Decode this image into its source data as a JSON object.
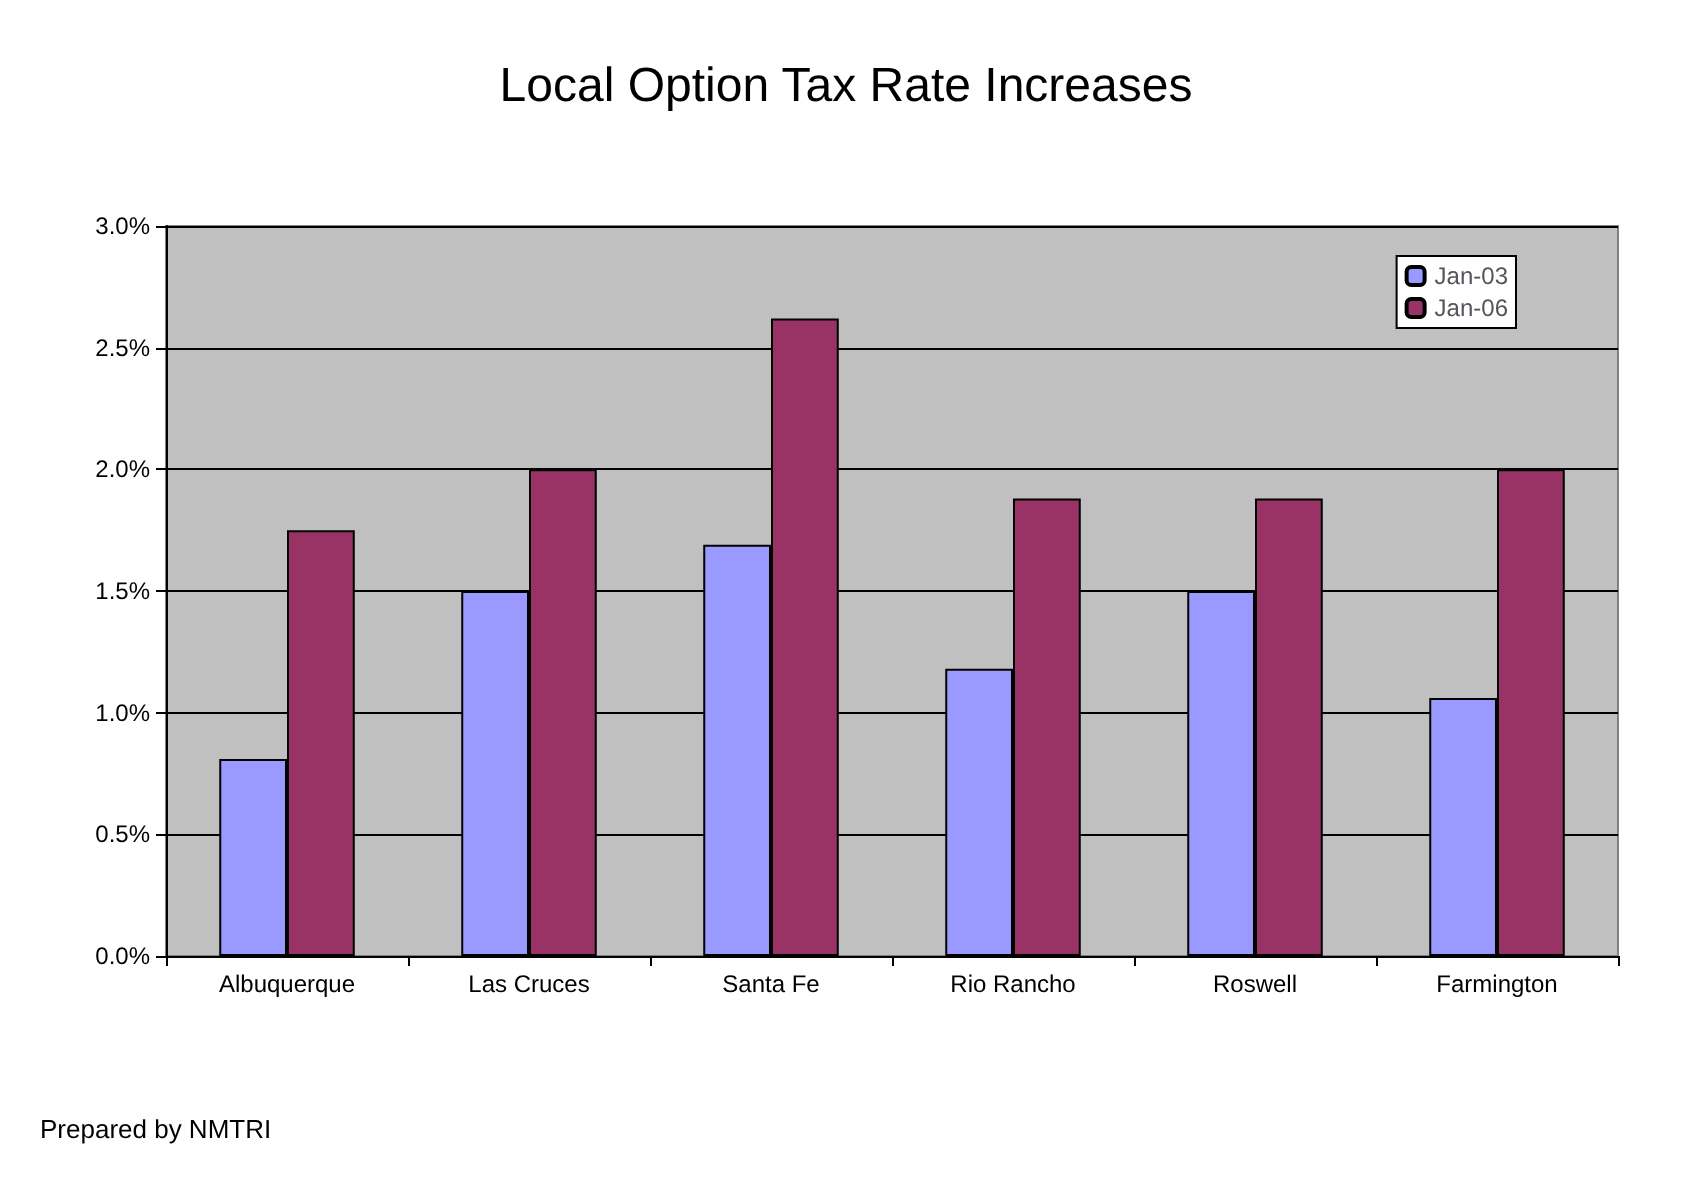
{
  "chart_data": {
    "type": "bar",
    "title": "Local Option Tax Rate Increases",
    "categories": [
      "Albuquerque",
      "Las Cruces",
      "Santa Fe",
      "Rio Rancho",
      "Roswell",
      "Farmington"
    ],
    "series": [
      {
        "name": "Jan-03",
        "color": "#9999ff",
        "values": [
          0.81,
          1.5,
          1.69,
          1.18,
          1.5,
          1.06
        ]
      },
      {
        "name": "Jan-06",
        "color": "#993366",
        "values": [
          1.75,
          2.0,
          2.62,
          1.88,
          1.88,
          2.0
        ]
      }
    ],
    "ylim": [
      0,
      3
    ],
    "yticks": [
      {
        "value": 0,
        "label": "0.0%"
      },
      {
        "value": 0.5,
        "label": "0.5%"
      },
      {
        "value": 1,
        "label": "1.0%"
      },
      {
        "value": 1.5,
        "label": "1.5%"
      },
      {
        "value": 2,
        "label": "2.0%"
      },
      {
        "value": 2.5,
        "label": "2.5%"
      },
      {
        "value": 3,
        "label": "3.0%"
      }
    ],
    "grid": "y",
    "legend": "top right",
    "annotations": [
      "Prepared by NMTRI"
    ]
  }
}
